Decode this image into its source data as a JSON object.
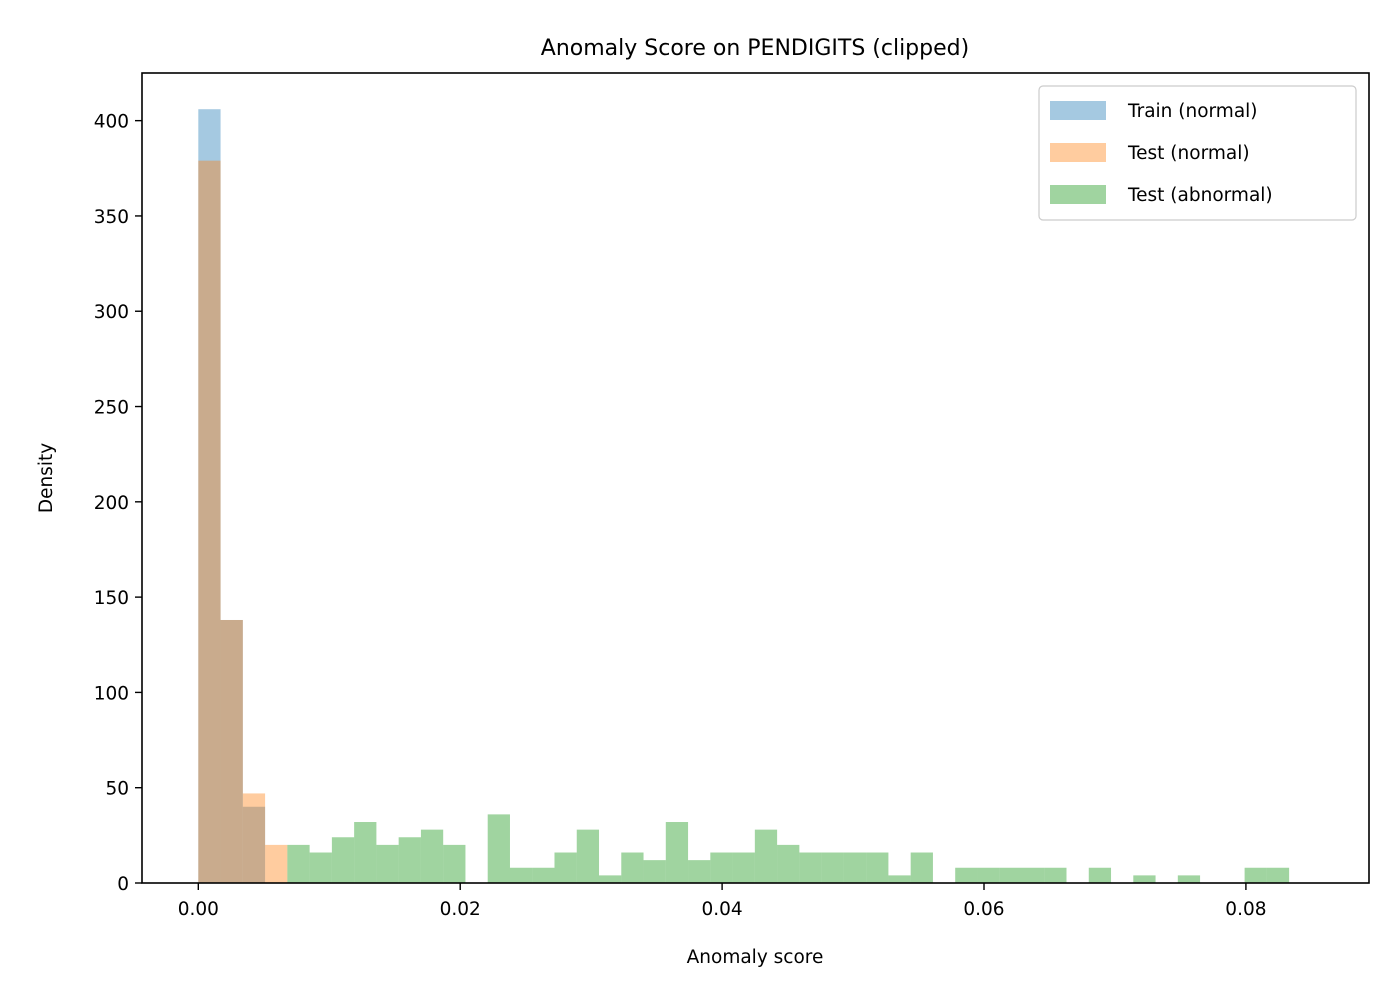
{
  "chart_data": {
    "type": "bar",
    "title": "Anomaly Score on PENDIGITS (clipped)",
    "xlabel": "Anomaly score",
    "ylabel": "Density",
    "xlim": [
      -0.0043,
      0.0894
    ],
    "ylim": [
      0,
      425
    ],
    "xticks": [
      0.0,
      0.02,
      0.04,
      0.06,
      0.08
    ],
    "xtick_labels": [
      "0.00",
      "0.02",
      "0.04",
      "0.06",
      "0.08"
    ],
    "yticks": [
      0,
      50,
      100,
      150,
      200,
      250,
      300,
      350,
      400
    ],
    "ytick_labels": [
      "0",
      "50",
      "100",
      "150",
      "200",
      "250",
      "300",
      "350",
      "400"
    ],
    "grid": false,
    "legend_position": "top-right",
    "bin_width": 0.0017,
    "series": [
      {
        "name": "Train (normal)",
        "color": "#1f77b4",
        "opacity": 0.4,
        "x_start": 0.0,
        "values": [
          406,
          138,
          40
        ]
      },
      {
        "name": "Test (normal)",
        "color": "#ff7f0e",
        "opacity": 0.4,
        "x_start": 0.0,
        "values": [
          379,
          138,
          47,
          20
        ]
      },
      {
        "name": "Test (abnormal)",
        "color": "#2ca02c",
        "opacity": 0.45,
        "x_start": 0.0068,
        "values": [
          20,
          16,
          24,
          32,
          20,
          24,
          28,
          20,
          0,
          36,
          8,
          8,
          16,
          28,
          4,
          16,
          12,
          32,
          12,
          16,
          16,
          28,
          20,
          16,
          16,
          16,
          16,
          4,
          16,
          0,
          8,
          8,
          8,
          8,
          8,
          0,
          8,
          0,
          4,
          0,
          4,
          0,
          0,
          8,
          8
        ]
      }
    ]
  }
}
